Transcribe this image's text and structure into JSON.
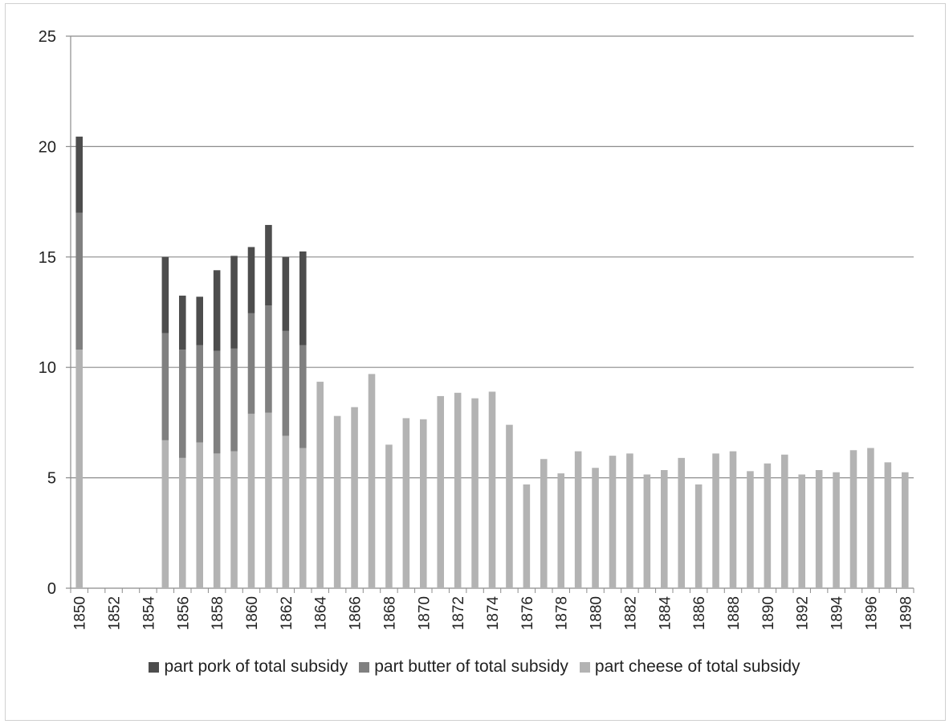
{
  "chart_data": {
    "type": "bar",
    "stacked": true,
    "title": "",
    "xlabel": "",
    "ylabel": "",
    "ylim": [
      0,
      25
    ],
    "yticks": [
      0,
      5,
      10,
      15,
      20,
      25
    ],
    "grid": true,
    "legend_position": "bottom",
    "categories": [
      "1850",
      "1851",
      "1852",
      "1853",
      "1854",
      "1855",
      "1856",
      "1857",
      "1858",
      "1859",
      "1860",
      "1861",
      "1862",
      "1863",
      "1864",
      "1865",
      "1866",
      "1867",
      "1868",
      "1869",
      "1870",
      "1871",
      "1872",
      "1873",
      "1874",
      "1875",
      "1876",
      "1877",
      "1878",
      "1879",
      "1880",
      "1881",
      "1882",
      "1883",
      "1884",
      "1885",
      "1886",
      "1887",
      "1888",
      "1889",
      "1890",
      "1891",
      "1892",
      "1893",
      "1894",
      "1895",
      "1896",
      "1897",
      "1898"
    ],
    "tick_labels": [
      "1850",
      "1852",
      "1854",
      "1856",
      "1858",
      "1860",
      "1862",
      "1864",
      "1866",
      "1868",
      "1870",
      "1872",
      "1874",
      "1876",
      "1878",
      "1880",
      "1882",
      "1884",
      "1886",
      "1888",
      "1890",
      "1892",
      "1894",
      "1896",
      "1898"
    ],
    "series": [
      {
        "name": "part cheese of total subsidy",
        "color": "#b3b3b3",
        "values": [
          10.8,
          0,
          0,
          0,
          0,
          6.7,
          5.9,
          6.6,
          6.1,
          6.2,
          7.9,
          7.95,
          6.9,
          6.35,
          9.35,
          7.8,
          8.2,
          9.7,
          6.5,
          7.7,
          7.65,
          8.7,
          8.85,
          8.6,
          8.9,
          7.4,
          4.7,
          5.85,
          5.2,
          6.2,
          5.45,
          6.0,
          6.1,
          5.15,
          5.35,
          5.9,
          4.7,
          6.1,
          6.2,
          5.3,
          5.65,
          6.05,
          5.15,
          5.35,
          5.25,
          6.25,
          6.35,
          5.7,
          5.25
        ]
      },
      {
        "name": "part butter of total subsidy",
        "color": "#808080",
        "values": [
          6.2,
          0,
          0,
          0,
          0,
          4.85,
          4.9,
          4.4,
          4.65,
          4.65,
          4.55,
          4.85,
          4.75,
          4.65,
          0,
          0,
          0,
          0,
          0,
          0,
          0,
          0,
          0,
          0,
          0,
          0,
          0,
          0,
          0,
          0,
          0,
          0,
          0,
          0,
          0,
          0,
          0,
          0,
          0,
          0,
          0,
          0,
          0,
          0,
          0,
          0,
          0,
          0,
          0
        ]
      },
      {
        "name": "part pork of total subsidy",
        "color": "#4d4d4d",
        "values": [
          3.45,
          0,
          0,
          0,
          0,
          3.45,
          2.45,
          2.2,
          3.65,
          4.2,
          3.0,
          3.65,
          3.35,
          4.25,
          0,
          0,
          0,
          0,
          0,
          0,
          0,
          0,
          0,
          0,
          0,
          0,
          0,
          0,
          0,
          0,
          0,
          0,
          0,
          0,
          0,
          0,
          0,
          0,
          0,
          0,
          0,
          0,
          0,
          0,
          0,
          0,
          0,
          0,
          0
        ]
      }
    ]
  },
  "legend": {
    "items": [
      {
        "label": "part pork of total subsidy",
        "color": "#4d4d4d"
      },
      {
        "label": "part butter of total subsidy",
        "color": "#808080"
      },
      {
        "label": "part cheese of total subsidy",
        "color": "#b3b3b3"
      }
    ]
  }
}
